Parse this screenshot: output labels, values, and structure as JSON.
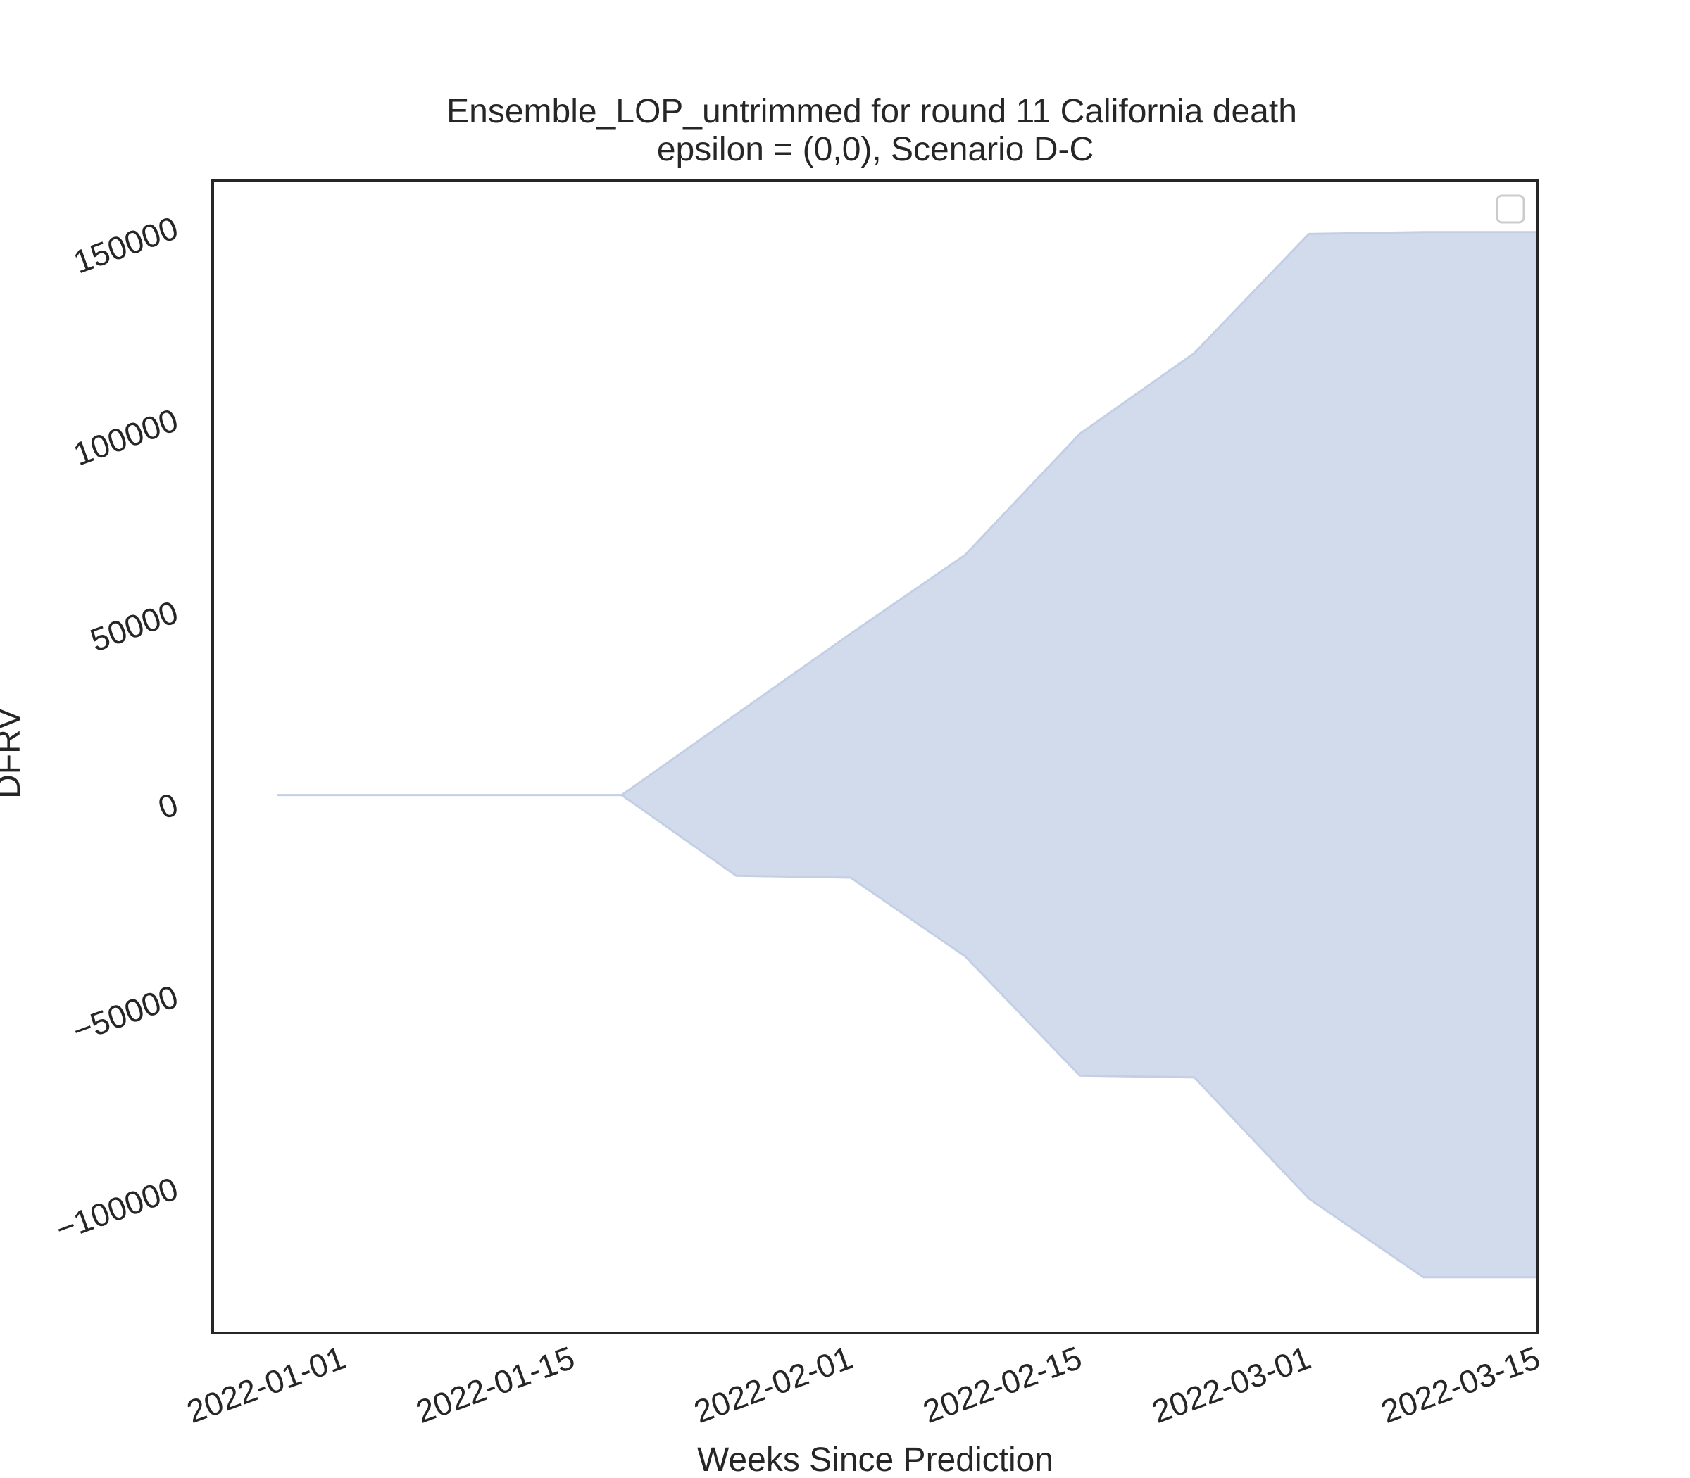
{
  "chart_data": {
    "type": "area",
    "title": "Ensemble_LOP_untrimmed for round 11 California death",
    "subtitle": "epsilon = (0,0), Scenario D-C",
    "xlabel": "Weeks Since Prediction",
    "ylabel": "DFRV",
    "x_ticks": [
      "2022-01-01",
      "2022-01-15",
      "2022-02-01",
      "2022-02-15",
      "2022-03-01",
      "2022-03-15"
    ],
    "y_ticks": [
      {
        "value": -100000,
        "label": "−100000"
      },
      {
        "value": -50000,
        "label": "−50000"
      },
      {
        "value": 0,
        "label": "0"
      },
      {
        "value": 50000,
        "label": "50000"
      },
      {
        "value": 100000,
        "label": "100000"
      },
      {
        "value": 150000,
        "label": "150000"
      }
    ],
    "xlim": [
      "2021-12-24",
      "2022-03-15"
    ],
    "ylim": [
      -140000,
      160000
    ],
    "grid": false,
    "legend": "top-right (empty)",
    "fill_color": "#c3cfe5",
    "fill_opacity": 0.75,
    "band": [
      {
        "x": "2021-12-28",
        "lower": 0,
        "upper": 0
      },
      {
        "x": "2022-01-18",
        "lower": 0,
        "upper": 0
      },
      {
        "x": "2022-01-25",
        "lower": -21000,
        "upper": 21000
      },
      {
        "x": "2022-02-01",
        "lower": -21500,
        "upper": 42000
      },
      {
        "x": "2022-02-08",
        "lower": -42000,
        "upper": 62500
      },
      {
        "x": "2022-02-15",
        "lower": -73000,
        "upper": 94000
      },
      {
        "x": "2022-02-22",
        "lower": -73500,
        "upper": 115000
      },
      {
        "x": "2022-03-01",
        "lower": -105000,
        "upper": 146000
      },
      {
        "x": "2022-03-08",
        "lower": -125500,
        "upper": 146500
      },
      {
        "x": "2022-03-15",
        "lower": -125500,
        "upper": 146500
      }
    ]
  }
}
